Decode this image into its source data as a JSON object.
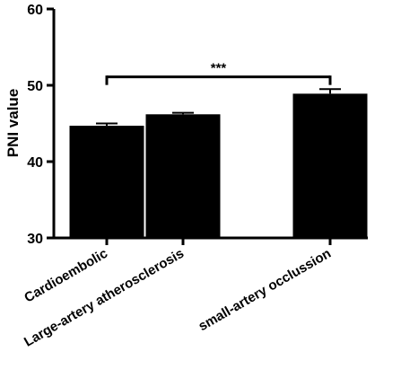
{
  "chart_data": {
    "type": "bar",
    "ylabel": "PNI value",
    "ylim": [
      30,
      60
    ],
    "yticks": [
      30,
      40,
      50,
      60
    ],
    "categories": [
      "Cardioembolic",
      "Large-artery atherosclerosis",
      "small-artery occlussion"
    ],
    "values": [
      44.7,
      46.2,
      48.9
    ],
    "errors": [
      0.3,
      0.2,
      0.6
    ],
    "bar_color": "#000000",
    "annotation": {
      "from_category": 0,
      "to_category": 2,
      "label": "***",
      "y": 51.1
    }
  }
}
